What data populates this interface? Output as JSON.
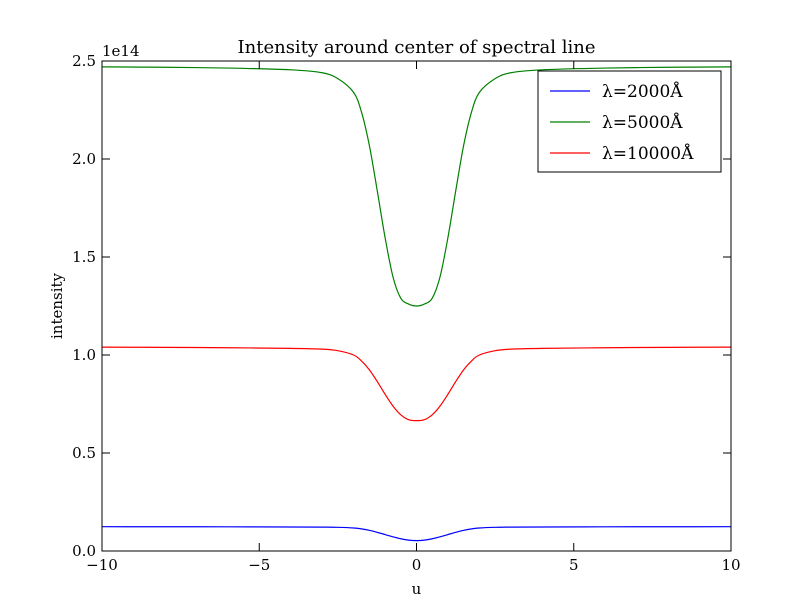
{
  "chart_data": {
    "type": "line",
    "title": "Intensity around center of spectral line",
    "xlabel": "u",
    "ylabel": "intensity",
    "y_offset_label": "1e14",
    "y_scale": 100000000000000.0,
    "xlim": [
      -10,
      10
    ],
    "ylim": [
      0,
      2.5
    ],
    "x_ticks": [
      -10,
      -5,
      0,
      5,
      10
    ],
    "x_tick_labels": [
      "−10",
      "−5",
      "0",
      "5",
      "10"
    ],
    "y_ticks": [
      0,
      0.5,
      1.0,
      1.5,
      2.0,
      2.5
    ],
    "y_tick_labels": [
      "0.0",
      "0.5",
      "1.0",
      "1.5",
      "2.0",
      "2.5"
    ],
    "grid": false,
    "legend_position": "top-right",
    "x": [
      -10,
      -8,
      -6,
      -4,
      -3,
      -2.5,
      -2,
      -1.75,
      -1.5,
      -1.25,
      -1,
      -0.75,
      -0.5,
      -0.25,
      0,
      0.25,
      0.5,
      0.75,
      1,
      1.25,
      1.5,
      1.75,
      2,
      2.5,
      3,
      4,
      6,
      8,
      10
    ],
    "series": [
      {
        "name": "λ=2000Å",
        "color": "#0000ff",
        "values": [
          0.124,
          0.1238,
          0.1234,
          0.1226,
          0.1218,
          0.1208,
          0.1175,
          0.113,
          0.1055,
          0.0955,
          0.084,
          0.0725,
          0.0625,
          0.0555,
          0.053,
          0.0555,
          0.0625,
          0.0725,
          0.084,
          0.0955,
          0.1055,
          0.113,
          0.1175,
          0.1208,
          0.1218,
          0.1226,
          0.1234,
          0.1238,
          0.124
        ]
      },
      {
        "name": "λ=5000Å",
        "color": "#008000",
        "values": [
          2.47,
          2.468,
          2.464,
          2.455,
          2.44,
          2.41,
          2.34,
          2.24,
          2.07,
          1.84,
          1.6,
          1.4,
          1.29,
          1.26,
          1.25,
          1.26,
          1.29,
          1.4,
          1.6,
          1.84,
          2.07,
          2.24,
          2.34,
          2.41,
          2.44,
          2.455,
          2.464,
          2.468,
          2.47
        ]
      },
      {
        "name": "λ=10000Å",
        "color": "#ff0000",
        "values": [
          1.04,
          1.039,
          1.037,
          1.034,
          1.03,
          1.022,
          1.0,
          0.97,
          0.925,
          0.865,
          0.8,
          0.74,
          0.695,
          0.67,
          0.665,
          0.67,
          0.695,
          0.74,
          0.8,
          0.865,
          0.925,
          0.97,
          1.0,
          1.022,
          1.03,
          1.034,
          1.037,
          1.039,
          1.04
        ]
      }
    ]
  }
}
